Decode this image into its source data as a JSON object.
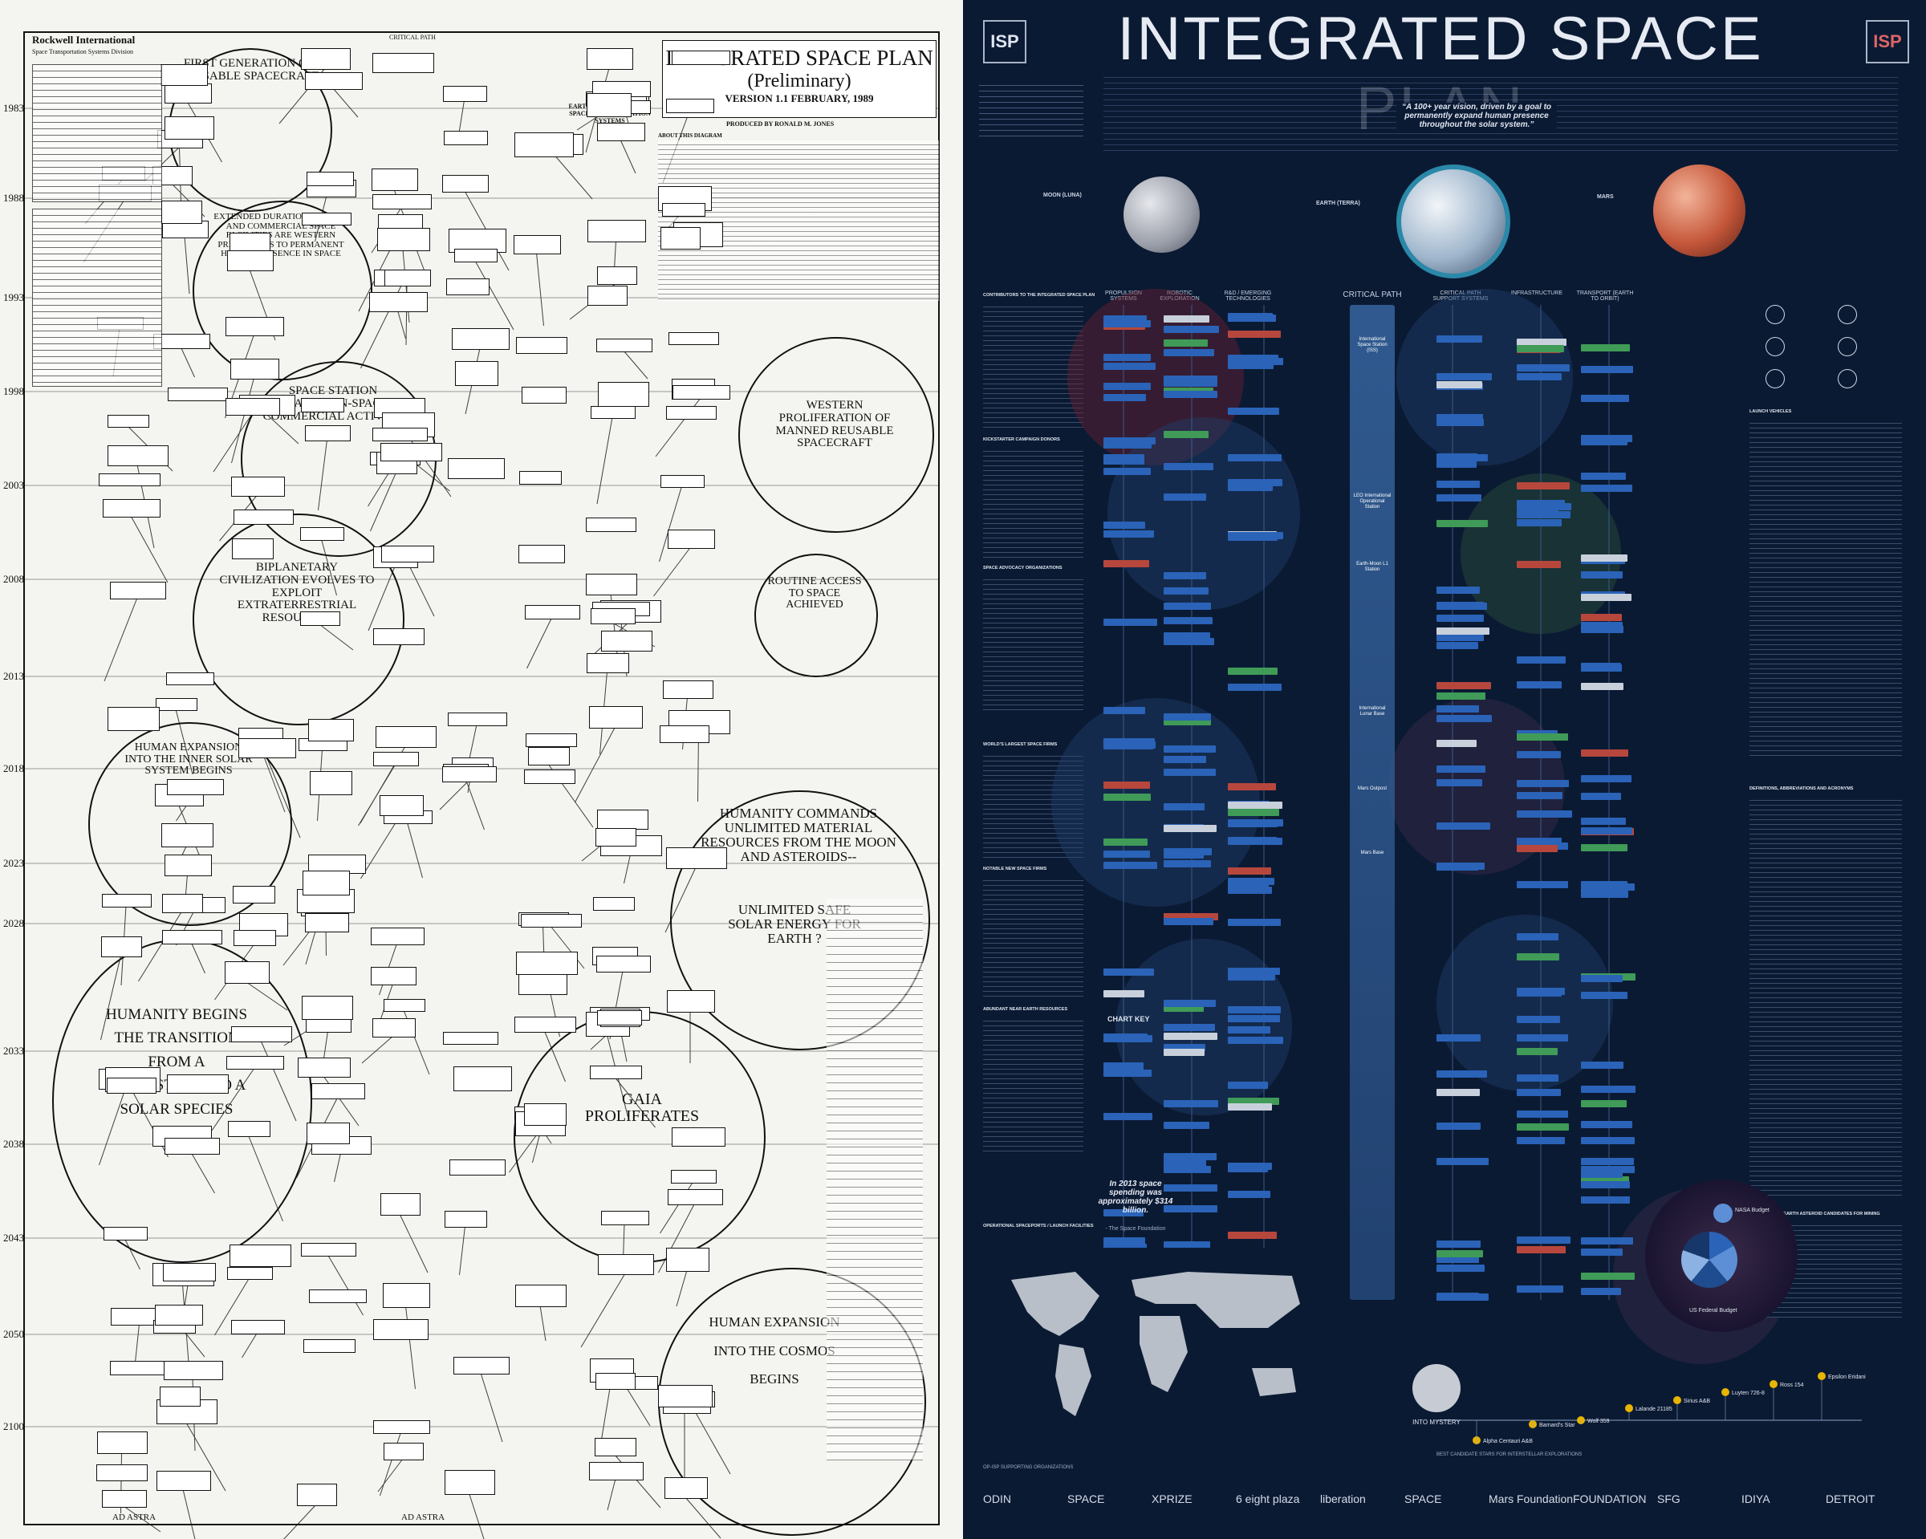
{
  "left_poster": {
    "company": "Rockwell International",
    "division": "Space Transportation Systems Division",
    "title": "INTEGRATED SPACE PLAN",
    "subtitle": "(Preliminary)",
    "version": "VERSION 1.1 FEBRUARY, 1989",
    "produced_by": "PRODUCED BY RONALD M. JONES",
    "about_heading": "ABOUT THIS DIAGRAM",
    "critical_path": "CRITICAL PATH",
    "earth_to_orbit": "EARTH-TO-ORBIT AND IN-SPACE TRANSPORTATION SYSTEMS",
    "years": [
      "1983",
      "1988",
      "1993",
      "1998",
      "2003",
      "2008",
      "2013",
      "2018",
      "2023",
      "2028",
      "2033",
      "2038",
      "2043",
      "2050",
      "2100"
    ],
    "circles": [
      {
        "id": "first-generation",
        "text": "FIRST GENERATION OF REUSABLE SPACECRAFT"
      },
      {
        "id": "permanent-presence",
        "text": "EXTENDED DURATION ORBITER AND COMMERCIAL SPACE FACILITIES ARE WESTERN PRECURSORS TO PERMANENT HUMAN PRESENCE IN SPACE"
      },
      {
        "id": "space-station",
        "text": "SPACE STATION ENABLES IN-SPACE COMMERCIAL ACTIVITY"
      },
      {
        "id": "western-proliferation",
        "text": "WESTERN PROLIFERATION OF MANNED REUSABLE SPACECRAFT"
      },
      {
        "id": "routine-access",
        "text": "ROUTINE ACCESS TO SPACE ACHIEVED"
      },
      {
        "id": "biplanetary",
        "text": "BIPLANETARY CIVILIZATION EVOLVES TO EXPLOIT EXTRATERRESTRIAL RESOURCES"
      },
      {
        "id": "inner-solar",
        "text": "HUMAN EXPANSION INTO THE INNER SOLAR SYSTEM BEGINS"
      },
      {
        "id": "material-resources",
        "text": "HUMANITY COMMANDS UNLIMITED MATERIAL RESOURCES FROM THE MOON AND ASTEROIDS--"
      },
      {
        "id": "solar-energy",
        "text": "UNLIMITED SAFE SOLAR ENERGY FOR EARTH ?"
      },
      {
        "id": "transition",
        "text": "HUMANITY BEGINS THE TRANSITION FROM A TERRESTRIAL TO A SOLAR SPECIES"
      },
      {
        "id": "gaia",
        "text": "GAIA PROLIFERATES"
      },
      {
        "id": "cosmos",
        "text": "HUMAN EXPANSION INTO THE COSMOS BEGINS"
      }
    ],
    "footer_left": "AD ASTRA",
    "footer_center": "AD ASTRA"
  },
  "right_poster": {
    "title": "INTEGRATED SPACE PLAN",
    "quote": "“A 100+ year vision, driven by a goal to permanently expand human presence throughout the solar system.”",
    "bodies": [
      {
        "name": "MOON (LUNA)",
        "color": "#b9bcc4"
      },
      {
        "name": "EARTH (TERRA)",
        "color": "#9fb6cc"
      },
      {
        "name": "MARS",
        "color": "#c5573a"
      }
    ],
    "columns": [
      "PROPULSION SYSTEMS",
      "ROBOTIC EXPLORATION",
      "R&D / EMERGING TECHNOLOGIES",
      "CRITICAL PATH",
      "CRITICAL PATH SUPPORT SYSTEMS",
      "INFRASTRUCTURE",
      "TRANSPORT (EARTH TO ORBIT)"
    ],
    "critical_path_items": [
      "International Space Station (ISS)",
      "LEO International Operational Station",
      "Earth-Moon L1 Station",
      "International Lunar Base",
      "Mars Outpost",
      "Mars Base"
    ],
    "left_col_headings": [
      "CONTRIBUTORS TO THE INTEGRATED SPACE PLAN",
      "KICKSTARTER CAMPAIGN DONORS",
      "SPACE ADVOCACY ORGANIZATIONS",
      "WORLD'S LARGEST SPACE FIRMS",
      "NOTABLE NEW SPACE FIRMS",
      "ABUNDANT NEAR EARTH RESOURCES",
      "OPERATIONAL SPACEPORTS / LAUNCH FACILITIES"
    ],
    "chart_key": "CHART KEY",
    "spending_note": "In 2013 space spending was approximately $314 billion.",
    "spending_source": "- The Space Foundation",
    "nasa_budget": "NASA Budget",
    "federal_budget": "US Federal Budget",
    "right_col_headings": [
      "LAUNCH VEHICLES",
      "DEFINITIONS, ABBREVIATIONS AND ACRONYMS",
      "TOP TEN NEAR EARTH ASTEROID CANDIDATES FOR MINING"
    ],
    "into_mystery": "INTO MYSTERY",
    "star_distance_label": "BEST CANDIDATE STARS FOR INTERSTELLAR EXPLORATIONS",
    "star_names": [
      "Alpha Centauri A&B",
      "Barnard's Star",
      "Wolf 359",
      "Lalande 21185",
      "Sirius A&B",
      "Luyten 726-8",
      "Ross 154",
      "Epsilon Eridani"
    ],
    "sponsors_label": "OP-ISP SUPPORTING ORGANIZATIONS",
    "sponsors": [
      "ODIN",
      "SPACE",
      "XPRIZE",
      "6 eight plaza",
      "liberation",
      "SPACE",
      "Mars Foundation",
      "FOUNDATION",
      "SFG",
      "IDIYA",
      "DETROIT"
    ],
    "colors": {
      "bg": "#0b1a33",
      "blue_box": "#2a63b8",
      "red_box": "#b7473d",
      "green_box": "#3f9b57",
      "teal": "#2aa0a8"
    }
  }
}
